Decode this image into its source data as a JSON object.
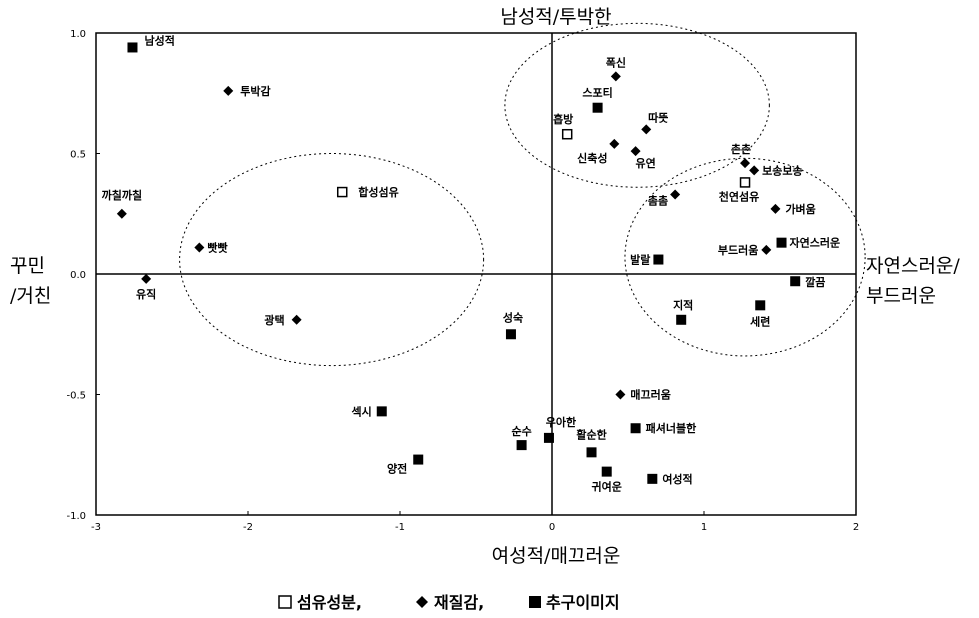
{
  "chart_data": {
    "type": "scatter",
    "xlim": [
      -3,
      2
    ],
    "ylim": [
      -1.0,
      1.0
    ],
    "x_ticks": [
      {
        "value": -3,
        "label": "-3"
      },
      {
        "value": -2,
        "label": "-2"
      },
      {
        "value": -1,
        "label": "-1"
      },
      {
        "value": 0,
        "label": "0"
      },
      {
        "value": 1,
        "label": "1"
      },
      {
        "value": 2,
        "label": "2"
      }
    ],
    "y_ticks": [
      {
        "value": 1.0,
        "label": "1.0"
      },
      {
        "value": 0.5,
        "label": "0.5"
      },
      {
        "value": 0.0,
        "label": "0.0"
      },
      {
        "value": -0.5,
        "label": "-0.5"
      },
      {
        "value": -1.0,
        "label": "-1.0"
      }
    ],
    "axis_labels": {
      "top": "남성적/투박한",
      "bottom": "여성적/매끄러운",
      "left_line1": "꾸민",
      "left_line2": "/거친",
      "right_line1": "자연스러운/",
      "right_line2": "부드러운"
    },
    "series": [
      {
        "name": "섬유성분,",
        "marker": "open-square",
        "points": [
          {
            "label": "합성섬유",
            "x": -1.38,
            "y": 0.34
          },
          {
            "label": "흡방",
            "x": 0.1,
            "y": 0.58
          },
          {
            "label": "천연섬유",
            "x": 1.27,
            "y": 0.38
          }
        ]
      },
      {
        "name": "재질감,",
        "marker": "diamond",
        "points": [
          {
            "label": "투박감",
            "x": -2.13,
            "y": 0.76
          },
          {
            "label": "까칠까칠",
            "x": -2.83,
            "y": 0.25
          },
          {
            "label": "빳빳",
            "x": -2.32,
            "y": 0.11
          },
          {
            "label": "유직",
            "x": -2.67,
            "y": -0.02
          },
          {
            "label": "광택",
            "x": -1.68,
            "y": -0.19
          },
          {
            "label": "폭신",
            "x": 0.42,
            "y": 0.82
          },
          {
            "label": "따뜻",
            "x": 0.62,
            "y": 0.6
          },
          {
            "label": "신축성",
            "x": 0.41,
            "y": 0.54
          },
          {
            "label": "유연",
            "x": 0.55,
            "y": 0.51
          },
          {
            "label": "촘촘",
            "x": 0.81,
            "y": 0.33
          },
          {
            "label": "촌촌",
            "x": 1.27,
            "y": 0.46
          },
          {
            "label": "보송보송",
            "x": 1.33,
            "y": 0.43
          },
          {
            "label": "가벼움",
            "x": 1.47,
            "y": 0.27
          },
          {
            "label": "부드러움",
            "x": 1.41,
            "y": 0.1
          },
          {
            "label": "매끄러움",
            "x": 0.45,
            "y": -0.5
          }
        ]
      },
      {
        "name": "추구이미지",
        "marker": "filled-square",
        "points": [
          {
            "label": "남성적",
            "x": -2.76,
            "y": 0.94
          },
          {
            "label": "스포티",
            "x": 0.3,
            "y": 0.69
          },
          {
            "label": "발랄",
            "x": 0.7,
            "y": 0.06
          },
          {
            "label": "자연스러운",
            "x": 1.51,
            "y": 0.13
          },
          {
            "label": "깔끔",
            "x": 1.6,
            "y": -0.03
          },
          {
            "label": "지적",
            "x": 0.85,
            "y": -0.19
          },
          {
            "label": "세련",
            "x": 1.37,
            "y": -0.13
          },
          {
            "label": "성숙",
            "x": -0.27,
            "y": -0.25
          },
          {
            "label": "섹시",
            "x": -1.12,
            "y": -0.57
          },
          {
            "label": "양전",
            "x": -0.88,
            "y": -0.77
          },
          {
            "label": "순수",
            "x": -0.2,
            "y": -0.71
          },
          {
            "label": "우아한",
            "x": -0.02,
            "y": -0.68
          },
          {
            "label": "활순한",
            "x": 0.26,
            "y": -0.74
          },
          {
            "label": "패셔너블한",
            "x": 0.55,
            "y": -0.64
          },
          {
            "label": "귀여운",
            "x": 0.36,
            "y": -0.82
          },
          {
            "label": "여성적",
            "x": 0.66,
            "y": -0.85
          }
        ]
      }
    ],
    "cluster_ellipses": [
      {
        "cx": -1.45,
        "cy": 0.06,
        "rx": 1.0,
        "ry": 0.44
      },
      {
        "cx": 0.56,
        "cy": 0.7,
        "rx": 0.87,
        "ry": 0.34
      },
      {
        "cx": 1.27,
        "cy": 0.07,
        "rx": 0.79,
        "ry": 0.41
      }
    ],
    "legend": {
      "position": "bottom",
      "items": [
        {
          "marker": "open-square",
          "label": "섬유성분,"
        },
        {
          "marker": "diamond",
          "label": "재질감,"
        },
        {
          "marker": "filled-square",
          "label": "추구이미지"
        }
      ]
    },
    "grid": false
  }
}
